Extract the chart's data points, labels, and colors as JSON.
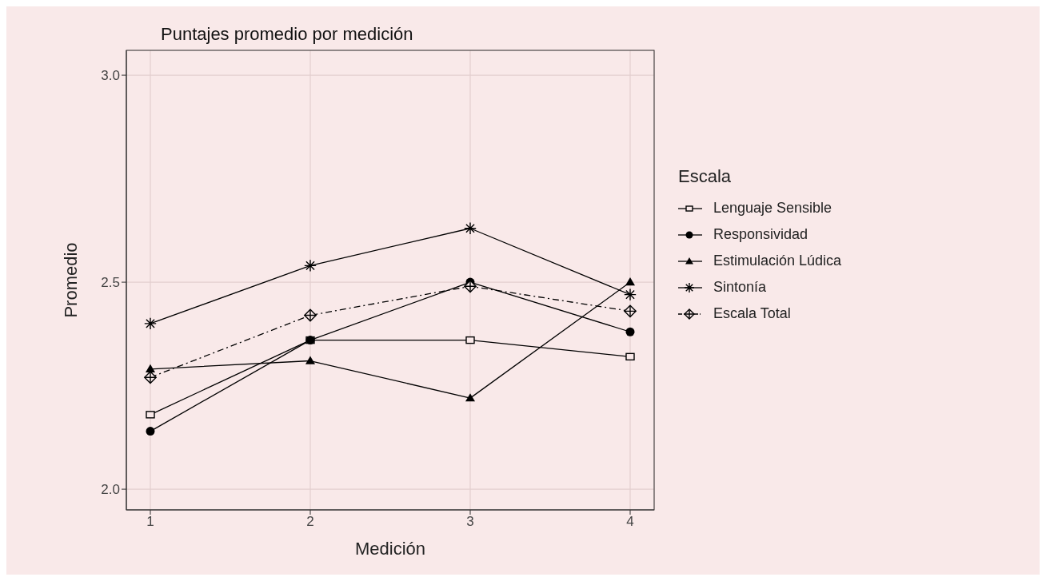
{
  "chart_data": {
    "type": "line",
    "title": "Puntajes promedio por medición",
    "xlabel": "Medición",
    "ylabel": "Promedio",
    "legend_title": "Escala",
    "legend": "right",
    "grid": true,
    "x": [
      1,
      2,
      3,
      4
    ],
    "xlim": [
      0.85,
      4.15
    ],
    "xticks": [
      1,
      2,
      3,
      4
    ],
    "ylim": [
      1.95,
      3.06
    ],
    "yticks": [
      {
        "value": 2.0,
        "label": "2.0"
      },
      {
        "value": 2.5,
        "label": "2.5"
      },
      {
        "value": 3.0,
        "label": "3.0"
      }
    ],
    "series": [
      {
        "name": "Lenguaje Sensible",
        "color": "#000000",
        "marker": "square",
        "line_style": "solid",
        "values": [
          2.18,
          2.36,
          2.36,
          2.32
        ]
      },
      {
        "name": "Responsividad",
        "color": "#000000",
        "marker": "circle",
        "line_style": "solid",
        "values": [
          2.14,
          2.36,
          2.5,
          2.38
        ]
      },
      {
        "name": "Estimulación Lúdica",
        "color": "#000000",
        "marker": "triangle",
        "line_style": "solid",
        "values": [
          2.29,
          2.31,
          2.22,
          2.5
        ]
      },
      {
        "name": "Sintonía",
        "color": "#000000",
        "marker": "cross",
        "line_style": "solid",
        "values": [
          2.4,
          2.54,
          2.63,
          2.47
        ]
      },
      {
        "name": "Escala Total",
        "color": "#000000",
        "marker": "diamond",
        "line_style": "dashed",
        "values": [
          2.27,
          2.42,
          2.49,
          2.43
        ]
      }
    ]
  }
}
